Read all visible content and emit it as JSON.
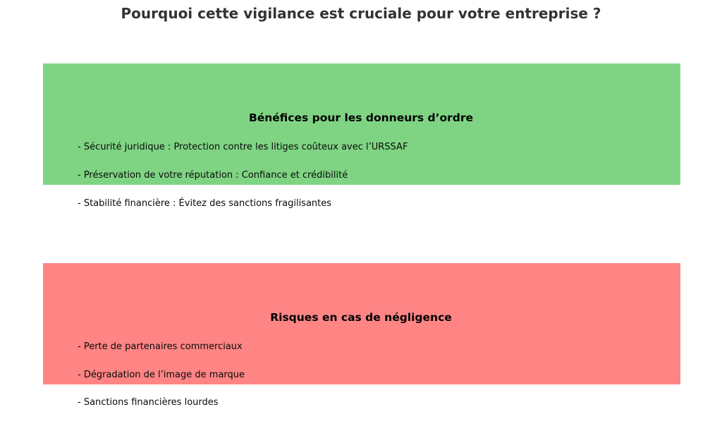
{
  "title": "Pourquoi cette vigilance est cruciale pour votre entreprise ?",
  "sections": [
    {
      "name": "benefits",
      "color": "#7fd483",
      "heading": "Bénéfices pour les donneurs d’ordre",
      "items": [
        "- Sécurité juridique : Protection contre les litiges coûteux avec l’URSSAF",
        "- Préservation de votre réputation : Confiance et crédibilité",
        "- Stabilité financière : Évitez des sanctions fragilisantes"
      ]
    },
    {
      "name": "risks",
      "color": "#ff8585",
      "heading": "Risques en cas de négligence",
      "items": [
        "- Perte de partenaires commerciaux",
        "- Dégradation de l’image de marque",
        "- Sanctions financières lourdes"
      ]
    }
  ],
  "colors": {
    "title_text": "#333333",
    "body_text": "#0a0a0a",
    "background": "#ffffff",
    "benefits_box": "#7fd483",
    "risks_box": "#ff8585"
  }
}
